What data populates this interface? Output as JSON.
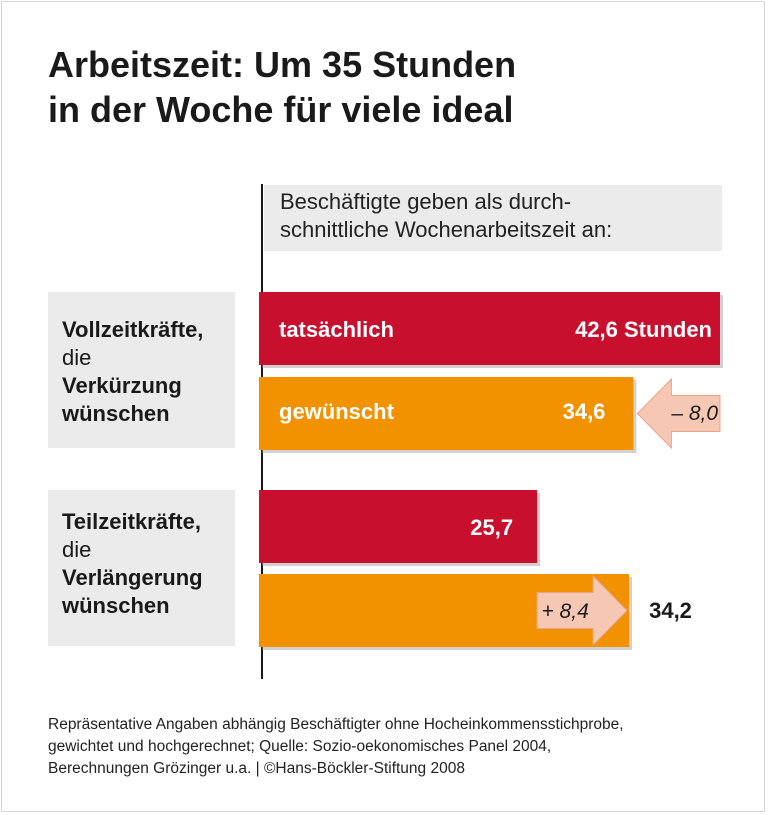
{
  "title": {
    "line1": "Arbeitszeit: Um 35 Stunden",
    "line2": "in der Woche für viele ideal"
  },
  "subtitle": {
    "line1": "Beschäftigte geben als durch-",
    "line2": "schnittliche Wochenarbeitszeit an:"
  },
  "groups": [
    {
      "bold1": "Vollzeitkräfte,",
      "plain": "die",
      "bold2": "Verkürzung",
      "bold3": "wünschen"
    },
    {
      "bold1": "Teilzeitkräfte,",
      "plain": "die",
      "bold2": "Verlängerung",
      "bold3": "wünschen"
    }
  ],
  "colors": {
    "actual": "#c8102e",
    "desired": "#f39200",
    "arrow": "#f6c8b4",
    "text_dark": "#1a1a1a"
  },
  "chart_data": {
    "type": "bar",
    "orientation": "horizontal",
    "unit": "Stunden",
    "series": [
      {
        "name": "tatsächlich",
        "values": [
          42.6,
          25.7
        ]
      },
      {
        "name": "gewünscht",
        "values": [
          34.6,
          34.2
        ]
      }
    ],
    "value_labels": {
      "actual": [
        "42,6 Stunden",
        "25,7"
      ],
      "desired": [
        "34,6",
        "34,2"
      ]
    },
    "differences": [
      "– 8,0",
      "+ 8,4"
    ],
    "xlim": [
      0,
      42.6
    ],
    "grid": false,
    "legend": "inline"
  },
  "footnote": {
    "line1": "Repräsentative Angaben abhängig Beschäftigter ohne Hocheinkommensstichprobe,",
    "line2": "gewichtet und hochgerechnet; Quelle: Sozio-oekonomisches Panel 2004,",
    "line3": "Berechnungen Grözinger u.a. | ©Hans-Böckler-Stiftung 2008"
  }
}
